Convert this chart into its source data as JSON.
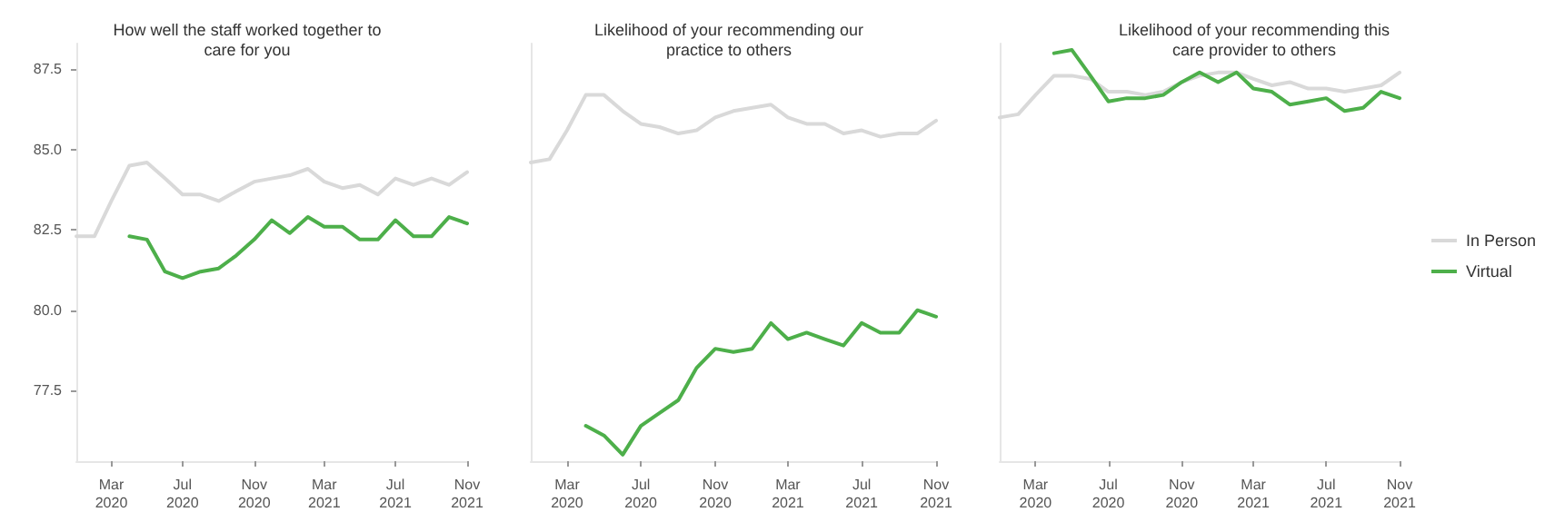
{
  "chart_data": [
    {
      "type": "line",
      "title": "How well the staff worked together to\ncare for you",
      "x": [
        "2020-01",
        "2020-02",
        "2020-03",
        "2020-04",
        "2020-05",
        "2020-06",
        "2020-07",
        "2020-08",
        "2020-09",
        "2020-10",
        "2020-11",
        "2020-12",
        "2021-01",
        "2021-02",
        "2021-03",
        "2021-04",
        "2021-05",
        "2021-06",
        "2021-07",
        "2021-08",
        "2021-09",
        "2021-10",
        "2021-11"
      ],
      "series": [
        {
          "color": "#d9d9d9",
          "values": [
            82.3,
            82.3,
            83.4,
            84.5,
            84.6,
            84.1,
            83.6,
            83.6,
            83.4,
            83.7,
            84.0,
            84.1,
            84.2,
            84.4,
            84.0,
            83.8,
            83.9,
            83.6,
            84.1,
            83.9,
            84.1,
            83.9,
            84.3
          ]
        },
        {
          "color": "#4daf4a",
          "values": [
            null,
            null,
            null,
            82.3,
            82.2,
            81.2,
            81.0,
            81.2,
            81.3,
            81.7,
            82.2,
            82.8,
            82.4,
            82.9,
            82.6,
            82.6,
            82.2,
            82.2,
            82.8,
            82.3,
            82.3,
            82.9,
            82.7
          ]
        }
      ],
      "xticks": [
        {
          "value": "2020-03",
          "label": "Mar\n2020"
        },
        {
          "value": "2020-07",
          "label": "Jul\n2020"
        },
        {
          "value": "2020-11",
          "label": "Nov\n2020"
        },
        {
          "value": "2021-03",
          "label": "Mar\n2021"
        },
        {
          "value": "2021-07",
          "label": "Jul\n2021"
        },
        {
          "value": "2021-11",
          "label": "Nov\n2021"
        }
      ],
      "yticks": [
        {
          "value": 77.5,
          "label": "77.5"
        },
        {
          "value": 80,
          "label": "80.0"
        },
        {
          "value": 82.5,
          "label": "82.5"
        },
        {
          "value": 85,
          "label": "85.0"
        },
        {
          "value": 87.5,
          "label": "87.5"
        }
      ],
      "xlim": [
        "2020-01",
        "2021-11"
      ],
      "ylim": [
        75.3,
        88.3
      ],
      "grid": false,
      "legend": false,
      "marker": "none",
      "line_style": "solid"
    },
    {
      "type": "line",
      "title": "Likelihood of your recommending our\npractice to others",
      "x": [
        "2020-01",
        "2020-02",
        "2020-03",
        "2020-04",
        "2020-05",
        "2020-06",
        "2020-07",
        "2020-08",
        "2020-09",
        "2020-10",
        "2020-11",
        "2020-12",
        "2021-01",
        "2021-02",
        "2021-03",
        "2021-04",
        "2021-05",
        "2021-06",
        "2021-07",
        "2021-08",
        "2021-09",
        "2021-10",
        "2021-11"
      ],
      "series": [
        {
          "color": "#d9d9d9",
          "values": [
            84.6,
            84.7,
            85.6,
            86.7,
            86.7,
            86.2,
            85.8,
            85.7,
            85.5,
            85.6,
            86.0,
            86.2,
            86.3,
            86.4,
            86.0,
            85.8,
            85.8,
            85.5,
            85.6,
            85.4,
            85.5,
            85.5,
            85.9
          ]
        },
        {
          "color": "#4daf4a",
          "values": [
            null,
            null,
            null,
            76.4,
            76.1,
            75.5,
            76.4,
            76.8,
            77.2,
            78.2,
            78.8,
            78.7,
            78.8,
            79.6,
            79.1,
            79.3,
            79.1,
            78.9,
            79.6,
            79.3,
            79.3,
            80.0,
            79.8
          ]
        }
      ],
      "xticks": [
        {
          "value": "2020-03",
          "label": "Mar\n2020"
        },
        {
          "value": "2020-07",
          "label": "Jul\n2020"
        },
        {
          "value": "2020-11",
          "label": "Nov\n2020"
        },
        {
          "value": "2021-03",
          "label": "Mar\n2021"
        },
        {
          "value": "2021-07",
          "label": "Jul\n2021"
        },
        {
          "value": "2021-11",
          "label": "Nov\n2021"
        }
      ],
      "xlim": [
        "2020-01",
        "2021-11"
      ],
      "ylim": [
        75.3,
        88.3
      ],
      "tick_labels": "x",
      "grid": false,
      "legend": false,
      "marker": "none",
      "line_style": "solid"
    },
    {
      "type": "line",
      "title": "Likelihood of your recommending this\ncare provider to others",
      "x": [
        "2020-01",
        "2020-02",
        "2020-03",
        "2020-04",
        "2020-05",
        "2020-06",
        "2020-07",
        "2020-08",
        "2020-09",
        "2020-10",
        "2020-11",
        "2020-12",
        "2021-01",
        "2021-02",
        "2021-03",
        "2021-04",
        "2021-05",
        "2021-06",
        "2021-07",
        "2021-08",
        "2021-09",
        "2021-10",
        "2021-11"
      ],
      "series": [
        {
          "name": "In Person",
          "color": "#d9d9d9",
          "values": [
            86.0,
            86.1,
            86.7,
            87.3,
            87.3,
            87.2,
            86.8,
            86.8,
            86.7,
            86.8,
            87.1,
            87.3,
            87.4,
            87.4,
            87.2,
            87.0,
            87.1,
            86.9,
            86.9,
            86.8,
            86.9,
            87.0,
            87.4
          ]
        },
        {
          "name": "Virtual",
          "color": "#4daf4a",
          "values": [
            null,
            null,
            null,
            88.0,
            88.1,
            87.3,
            86.5,
            86.6,
            86.6,
            86.7,
            87.1,
            87.4,
            87.1,
            87.4,
            86.9,
            86.8,
            86.4,
            86.5,
            86.6,
            86.2,
            86.3,
            86.8,
            86.6
          ]
        }
      ],
      "xticks": [
        {
          "value": "2020-03",
          "label": "Mar\n2020"
        },
        {
          "value": "2020-07",
          "label": "Jul\n2020"
        },
        {
          "value": "2020-11",
          "label": "Nov\n2020"
        },
        {
          "value": "2021-03",
          "label": "Mar\n2021"
        },
        {
          "value": "2021-07",
          "label": "Jul\n2021"
        },
        {
          "value": "2021-11",
          "label": "Nov\n2021"
        }
      ],
      "xlim": [
        "2020-01",
        "2021-11"
      ],
      "ylim": [
        75.3,
        88.3
      ],
      "tick_labels": "x",
      "grid": false,
      "legend": "right",
      "marker": "none",
      "line_style": "solid"
    }
  ]
}
